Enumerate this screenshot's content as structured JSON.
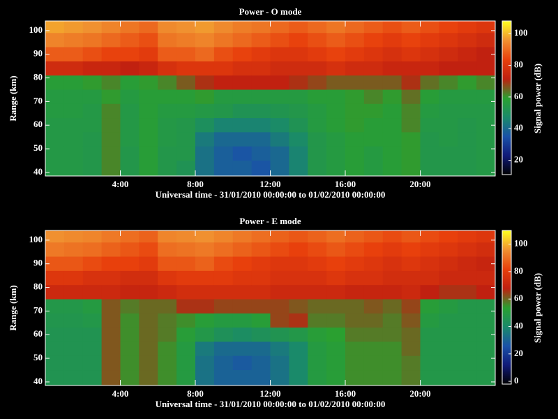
{
  "chart_data": [
    {
      "type": "heatmap",
      "title": "Power - O mode",
      "x_label": "Universal time - 31/01/2010 00:00:00 to 01/02/2010 00:00:00",
      "y_label": "Range (km)",
      "colorbar_label": "Signal power (dB)",
      "x": [
        0.5,
        1.5,
        2.5,
        3.5,
        4.5,
        5.5,
        6.5,
        7.5,
        8.5,
        9.5,
        10.5,
        11.5,
        12.5,
        13.5,
        14.5,
        15.5,
        16.5,
        17.5,
        18.5,
        19.5,
        20.5,
        21.5,
        22.5,
        23.5
      ],
      "y": [
        102,
        96,
        90,
        84,
        78,
        72,
        66,
        60,
        54,
        48,
        42
      ],
      "z": [
        [
          98,
          97,
          96,
          94,
          92,
          90,
          95,
          96,
          97,
          95,
          93,
          92,
          90,
          88,
          90,
          92,
          90,
          88,
          86,
          88,
          86,
          84,
          82,
          80
        ],
        [
          94,
          93,
          92,
          90,
          88,
          86,
          92,
          93,
          94,
          92,
          90,
          88,
          86,
          84,
          86,
          88,
          86,
          84,
          82,
          84,
          82,
          80,
          78,
          76
        ],
        [
          88,
          88,
          86,
          84,
          84,
          82,
          88,
          88,
          90,
          86,
          84,
          82,
          80,
          80,
          82,
          84,
          82,
          80,
          78,
          80,
          78,
          76,
          74,
          72
        ],
        [
          76,
          76,
          74,
          74,
          72,
          74,
          78,
          80,
          80,
          80,
          78,
          78,
          76,
          76,
          76,
          78,
          76,
          76,
          74,
          74,
          74,
          72,
          72,
          72
        ],
        [
          58,
          58,
          60,
          62,
          58,
          60,
          62,
          66,
          70,
          72,
          72,
          72,
          72,
          70,
          68,
          66,
          66,
          66,
          66,
          70,
          64,
          62,
          60,
          62
        ],
        [
          56,
          56,
          56,
          60,
          56,
          58,
          58,
          58,
          60,
          56,
          56,
          56,
          56,
          56,
          58,
          58,
          60,
          62,
          60,
          64,
          58,
          56,
          56,
          56
        ],
        [
          56,
          56,
          55,
          62,
          55,
          58,
          56,
          56,
          55,
          54,
          52,
          52,
          53,
          54,
          56,
          58,
          60,
          60,
          58,
          62,
          56,
          55,
          55,
          55
        ],
        [
          55,
          55,
          55,
          62,
          55,
          58,
          55,
          54,
          50,
          46,
          46,
          46,
          48,
          52,
          56,
          58,
          60,
          58,
          58,
          62,
          55,
          55,
          54,
          55
        ],
        [
          55,
          55,
          54,
          62,
          55,
          58,
          55,
          54,
          44,
          40,
          40,
          40,
          44,
          48,
          54,
          56,
          58,
          58,
          58,
          60,
          54,
          55,
          54,
          55
        ],
        [
          55,
          55,
          54,
          62,
          54,
          58,
          54,
          54,
          42,
          38,
          36,
          38,
          40,
          46,
          54,
          56,
          58,
          56,
          58,
          60,
          54,
          54,
          54,
          55
        ],
        [
          55,
          55,
          54,
          62,
          54,
          58,
          54,
          52,
          42,
          38,
          38,
          36,
          40,
          46,
          54,
          56,
          58,
          56,
          58,
          60,
          54,
          54,
          54,
          55
        ]
      ],
      "xlim": [
        0,
        24
      ],
      "ylim": [
        38.5,
        104.1
      ],
      "zlim": [
        11,
        108
      ],
      "xticks": [
        {
          "value": 4,
          "label": "4:00"
        },
        {
          "value": 8,
          "label": "8:00"
        },
        {
          "value": 12,
          "label": "12:00"
        },
        {
          "value": 16,
          "label": "16:00"
        },
        {
          "value": 20,
          "label": "20:00"
        }
      ],
      "yticks": [
        40,
        50,
        60,
        70,
        80,
        90,
        100
      ],
      "zticks": [
        20,
        40,
        60,
        80,
        100
      ],
      "colormap": [
        "#000000",
        "#101a78",
        "#1a52a8",
        "#1a8a6a",
        "#2aa030",
        "#c02010",
        "#e8400c",
        "#f09030",
        "#ffff20"
      ]
    },
    {
      "type": "heatmap",
      "title": "Power - E mode",
      "x_label": "Universal time - 31/01/2010 00:00:00 to 01/02/2010 00:00:00",
      "y_label": "Range (km)",
      "colorbar_label": "Signal power (dB)",
      "x": [
        0.5,
        1.5,
        2.5,
        3.5,
        4.5,
        5.5,
        6.5,
        7.5,
        8.5,
        9.5,
        10.5,
        11.5,
        12.5,
        13.5,
        14.5,
        15.5,
        16.5,
        17.5,
        18.5,
        19.5,
        20.5,
        21.5,
        22.5,
        23.5
      ],
      "y": [
        102,
        96,
        90,
        84,
        78,
        72,
        66,
        60,
        54,
        48,
        42
      ],
      "z": [
        [
          96,
          95,
          94,
          92,
          90,
          88,
          94,
          95,
          96,
          94,
          92,
          90,
          88,
          86,
          88,
          90,
          88,
          86,
          84,
          86,
          84,
          82,
          80,
          78
        ],
        [
          92,
          91,
          90,
          88,
          86,
          84,
          90,
          91,
          92,
          90,
          88,
          86,
          84,
          82,
          84,
          86,
          84,
          82,
          80,
          82,
          80,
          78,
          76,
          74
        ],
        [
          86,
          86,
          84,
          82,
          82,
          80,
          86,
          86,
          88,
          84,
          82,
          80,
          78,
          78,
          80,
          82,
          80,
          78,
          76,
          78,
          76,
          74,
          72,
          70
        ],
        [
          78,
          78,
          76,
          76,
          74,
          74,
          78,
          80,
          80,
          80,
          78,
          78,
          76,
          76,
          76,
          78,
          76,
          76,
          74,
          74,
          74,
          72,
          72,
          72
        ],
        [
          72,
          72,
          72,
          72,
          70,
          70,
          72,
          74,
          74,
          74,
          74,
          74,
          72,
          72,
          72,
          72,
          70,
          70,
          70,
          72,
          68,
          66,
          66,
          68
        ],
        [
          48,
          48,
          50,
          62,
          58,
          60,
          60,
          66,
          66,
          64,
          64,
          64,
          64,
          62,
          60,
          60,
          60,
          62,
          60,
          64,
          52,
          50,
          48,
          48
        ],
        [
          47,
          47,
          48,
          62,
          56,
          60,
          58,
          56,
          52,
          50,
          50,
          52,
          64,
          66,
          58,
          58,
          60,
          60,
          58,
          62,
          50,
          48,
          48,
          48
        ],
        [
          46,
          46,
          46,
          62,
          56,
          60,
          58,
          52,
          48,
          44,
          42,
          44,
          46,
          48,
          52,
          54,
          58,
          58,
          58,
          60,
          48,
          48,
          48,
          48
        ],
        [
          46,
          46,
          46,
          62,
          56,
          60,
          56,
          50,
          36,
          32,
          32,
          32,
          36,
          40,
          50,
          52,
          56,
          56,
          56,
          60,
          48,
          48,
          48,
          48
        ],
        [
          46,
          46,
          46,
          62,
          56,
          60,
          56,
          50,
          34,
          30,
          28,
          30,
          34,
          40,
          50,
          52,
          56,
          56,
          56,
          58,
          48,
          48,
          48,
          48
        ],
        [
          46,
          46,
          46,
          62,
          56,
          60,
          56,
          50,
          34,
          30,
          30,
          30,
          34,
          40,
          50,
          52,
          56,
          56,
          56,
          58,
          48,
          48,
          48,
          48
        ]
      ],
      "xlim": [
        0,
        24
      ],
      "ylim": [
        38.5,
        104.1
      ],
      "zlim": [
        -2,
        110
      ],
      "xticks": [
        {
          "value": 4,
          "label": "4:00"
        },
        {
          "value": 8,
          "label": "8:00"
        },
        {
          "value": 12,
          "label": "12:00"
        },
        {
          "value": 16,
          "label": "16:00"
        },
        {
          "value": 20,
          "label": "20:00"
        }
      ],
      "yticks": [
        40,
        50,
        60,
        70,
        80,
        90,
        100
      ],
      "zticks": [
        0,
        20,
        40,
        60,
        80,
        100
      ],
      "colormap": [
        "#000000",
        "#101a78",
        "#1a52a8",
        "#1a8a6a",
        "#2aa030",
        "#c02010",
        "#e8400c",
        "#f09030",
        "#ffff20"
      ]
    }
  ]
}
